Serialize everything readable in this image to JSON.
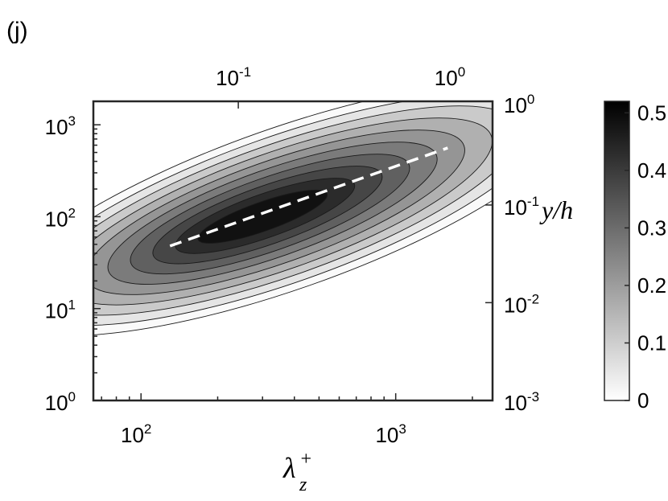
{
  "panel_label": "(j)",
  "chart_data": {
    "type": "heatmap",
    "subtype": "filled-contour",
    "colormap": "grayscale (white = 0, black = max)",
    "xlabel": "λ",
    "xlabel_sub": "z",
    "xlabel_sup": "+",
    "x_scale": "log",
    "xlim": [
      65,
      2400
    ],
    "x_ticks": [
      {
        "value": 100,
        "base": "10",
        "exp": "2"
      },
      {
        "value": 1000,
        "base": "10",
        "exp": "3"
      }
    ],
    "ylabel": "",
    "y_scale": "log",
    "ylim": [
      1,
      1800
    ],
    "y_ticks": [
      {
        "value": 1,
        "base": "10",
        "exp": "0"
      },
      {
        "value": 10,
        "base": "10",
        "exp": "1"
      },
      {
        "value": 100,
        "base": "10",
        "exp": "2"
      },
      {
        "value": 1000,
        "base": "10",
        "exp": "3"
      }
    ],
    "top_axis": {
      "scale": "log",
      "ticks": [
        {
          "value": 0.1,
          "base": "10",
          "exp": "-1",
          "at_x": 241
        },
        {
          "value": 1,
          "base": "10",
          "exp": "0",
          "at_x": 2410
        }
      ]
    },
    "right_axis": {
      "label": "y/h",
      "scale": "log",
      "ticks": [
        {
          "value": 0.001,
          "base": "10",
          "exp": "-3",
          "at_y": 1
        },
        {
          "value": 0.01,
          "base": "10",
          "exp": "-2",
          "at_y": 11.6
        },
        {
          "value": 0.1,
          "base": "10",
          "exp": "-1",
          "at_y": 134
        },
        {
          "value": 1,
          "base": "10",
          "exp": "0",
          "at_y": 1800
        }
      ]
    },
    "colorbar": {
      "range": [
        0,
        0.52
      ],
      "ticks": [
        "0",
        "0.1",
        "0.2",
        "0.3",
        "0.4",
        "0.5"
      ],
      "tick_values": [
        0,
        0.1,
        0.2,
        0.3,
        0.4,
        0.5
      ]
    },
    "peak": {
      "x": 300,
      "y": 100,
      "value": 0.52
    },
    "ridge_line": {
      "style": "white dashed",
      "points": [
        {
          "x": 130,
          "y": 48
        },
        {
          "x": 1600,
          "y": 560
        }
      ]
    },
    "contour_levels": [
      0.01,
      0.05,
      0.1,
      0.15,
      0.2,
      0.25,
      0.3,
      0.35,
      0.4,
      0.45
    ]
  }
}
